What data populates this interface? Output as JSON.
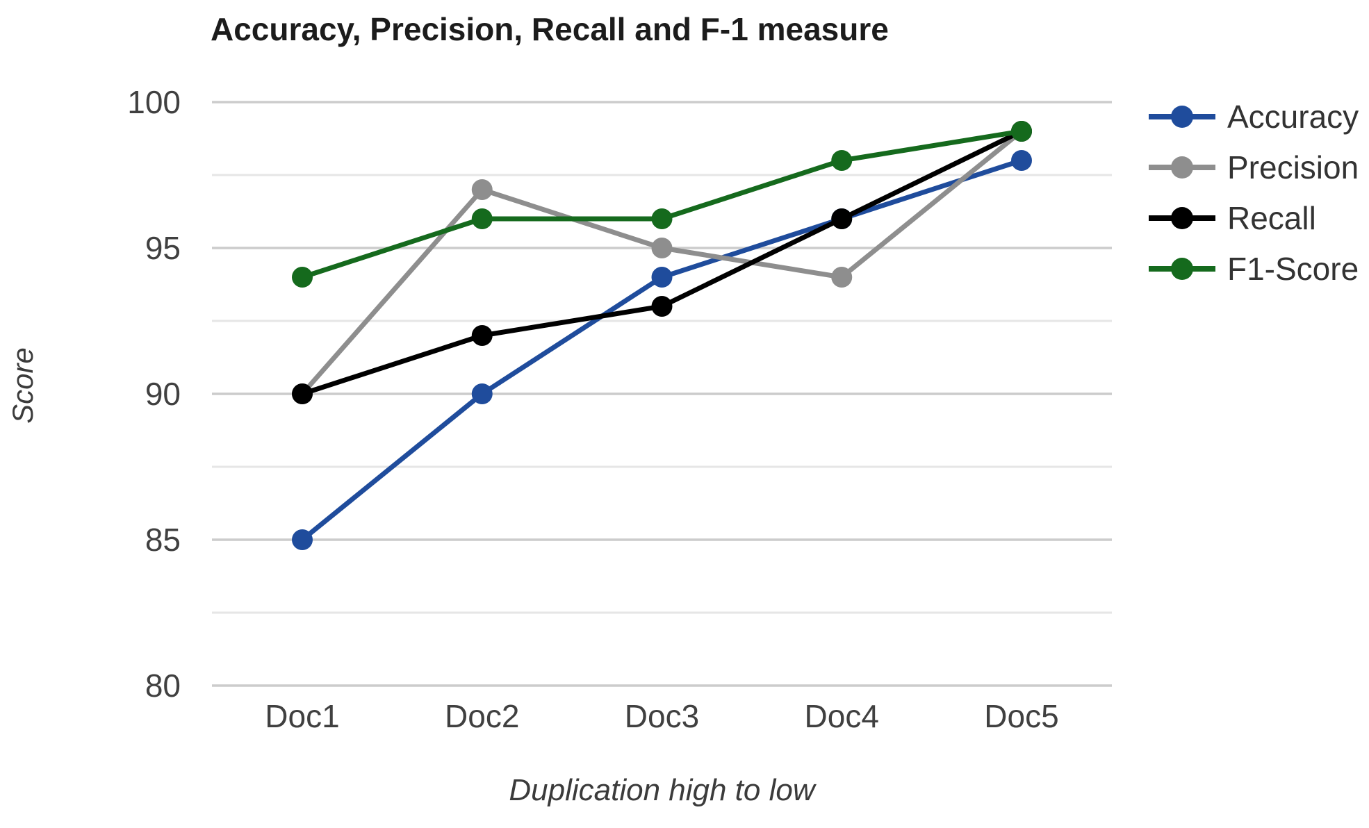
{
  "chart_data": {
    "type": "line",
    "title": "Accuracy, Precision, Recall and F-1 measure",
    "xlabel": "Duplication high to low",
    "ylabel": "Score",
    "categories": [
      "Doc1",
      "Doc2",
      "Doc3",
      "Doc4",
      "Doc5"
    ],
    "series": [
      {
        "name": "Accuracy",
        "color": "#1f4c9c",
        "values": [
          85,
          90,
          94,
          96,
          98
        ]
      },
      {
        "name": "Precision",
        "color": "#8e8e8e",
        "values": [
          90,
          97,
          95,
          94,
          99
        ]
      },
      {
        "name": "Recall",
        "color": "#000000",
        "values": [
          90,
          92,
          93,
          96,
          99
        ]
      },
      {
        "name": "F1-Score",
        "color": "#156a1d",
        "values": [
          94,
          96,
          96,
          98,
          99
        ]
      }
    ],
    "ylim": [
      80,
      100
    ],
    "yticks": [
      80,
      85,
      90,
      95,
      100
    ],
    "minor_yticks": [
      82.5,
      87.5,
      92.5,
      97.5
    ],
    "grid": true,
    "legend_position": "right",
    "marker": "circle"
  },
  "colors": {
    "major_gridline": "#cccccc",
    "minor_gridline": "#e6e6e6",
    "tick_label": "#404040",
    "title": "#1c1c1c",
    "axis_title": "#3b3b3b",
    "legend_text": "#333333",
    "background": "#ffffff"
  }
}
